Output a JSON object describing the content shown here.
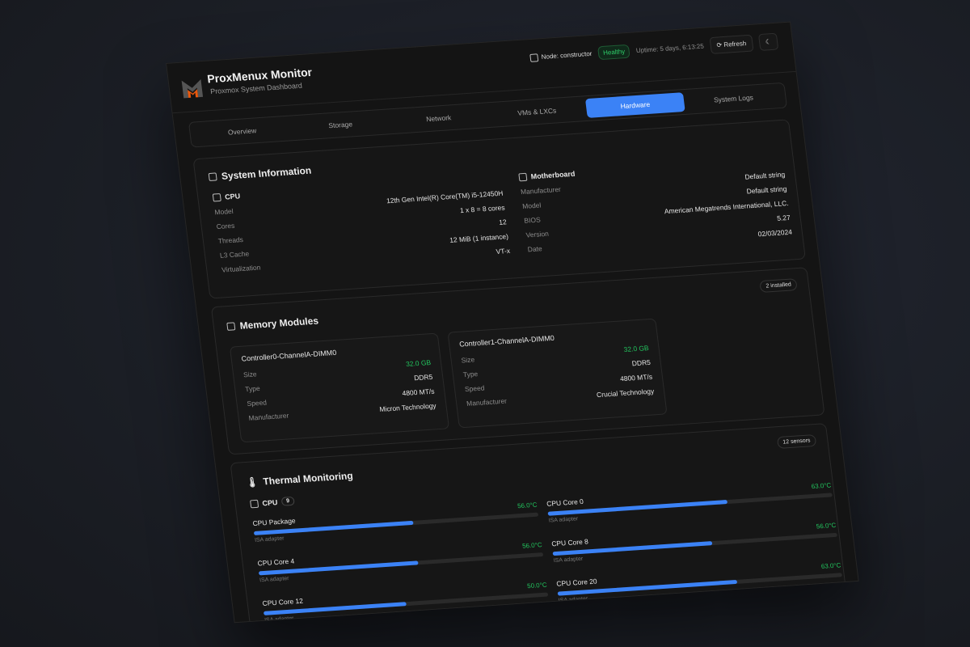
{
  "header": {
    "title": "ProxMenux Monitor",
    "subtitle": "Proxmox System Dashboard",
    "node": "Node: constructor",
    "status": "Healthy",
    "uptime": "Uptime: 5 days, 6:13:25",
    "refresh": "Refresh",
    "accent": "#3b82f6"
  },
  "tabs": [
    {
      "label": "Overview"
    },
    {
      "label": "Storage"
    },
    {
      "label": "Network"
    },
    {
      "label": "VMs & LXCs"
    },
    {
      "label": "Hardware",
      "active": true
    },
    {
      "label": "System Logs"
    }
  ],
  "system": {
    "title": "System Information",
    "cpu": {
      "title": "CPU",
      "rows": [
        {
          "label": "Model",
          "value": "12th Gen Intel(R) Core(TM) i5-12450H"
        },
        {
          "label": "Cores",
          "value": "1 x 8 = 8 cores"
        },
        {
          "label": "Threads",
          "value": "12"
        },
        {
          "label": "L3 Cache",
          "value": "12 MiB (1 instance)"
        },
        {
          "label": "Virtualization",
          "value": "VT-x"
        }
      ]
    },
    "motherboard": {
      "title": "Motherboard",
      "rows": [
        {
          "label": "Manufacturer",
          "value": "Default string"
        },
        {
          "label": "Model",
          "value": "Default string"
        },
        {
          "label": "BIOS",
          "value": "American Megatrends International, LLC."
        },
        {
          "label": "Version",
          "value": "5.27"
        },
        {
          "label": "Date",
          "value": "02/03/2024"
        }
      ]
    }
  },
  "memory": {
    "title": "Memory Modules",
    "badge": "2 installed",
    "modules": [
      {
        "name": "Controller0-ChannelA-DIMM0",
        "rows": [
          {
            "label": "Size",
            "value": "32.0 GB"
          },
          {
            "label": "Type",
            "value": "DDR5"
          },
          {
            "label": "Speed",
            "value": "4800 MT/s"
          },
          {
            "label": "Manufacturer",
            "value": "Micron Technology"
          }
        ]
      },
      {
        "name": "Controller1-ChannelA-DIMM0",
        "rows": [
          {
            "label": "Size",
            "value": "32.0 GB"
          },
          {
            "label": "Type",
            "value": "DDR5"
          },
          {
            "label": "Speed",
            "value": "4800 MT/s"
          },
          {
            "label": "Manufacturer",
            "value": "Crucial Technology"
          }
        ]
      }
    ]
  },
  "thermal": {
    "title": "Thermal Monitoring",
    "badge": "12 sensors",
    "group": "CPU",
    "group_count": "9",
    "sensors": [
      {
        "name": "CPU Package",
        "temp": "56.0°C",
        "value": 56,
        "adapter": "ISA adapter"
      },
      {
        "name": "CPU Core 0",
        "temp": "63.0°C",
        "value": 63,
        "adapter": "ISA adapter"
      },
      {
        "name": "CPU Core 4",
        "temp": "56.0°C",
        "value": 56,
        "adapter": "ISA adapter"
      },
      {
        "name": "CPU Core 8",
        "temp": "56.0°C",
        "value": 56,
        "adapter": "ISA adapter"
      },
      {
        "name": "CPU Core 12",
        "temp": "50.0°C",
        "value": 50,
        "adapter": "ISA adapter"
      },
      {
        "name": "CPU Core 20",
        "temp": "63.0°C",
        "value": 63,
        "adapter": "ISA adapter"
      }
    ]
  }
}
